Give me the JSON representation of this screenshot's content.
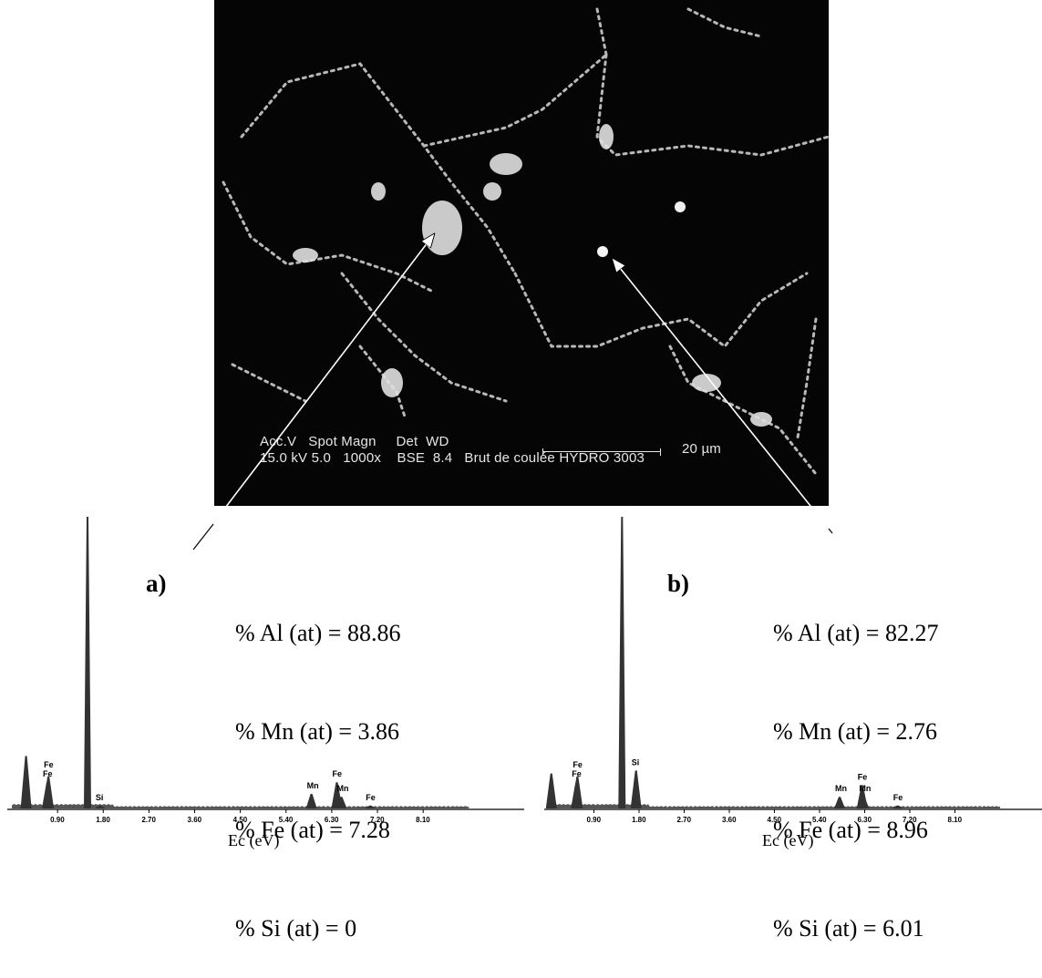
{
  "sem_image": {
    "info_line1": "Acc.V   Spot Magn     Det  WD",
    "info_line2": "15.0 kV 5.0   1000x    BSE  8.4   Brut de coulée HYDRO 3003",
    "scale_text": "20 µm"
  },
  "panels": [
    {
      "letter": "a)",
      "composition": [
        "% Al (at) = 88.86",
        "% Mn (at) = 3.86",
        "% Fe (at) = 7.28",
        "% Si (at) = 0"
      ]
    },
    {
      "letter": "b)",
      "composition": [
        "% Al (at) = 82.27",
        "% Mn (at) = 2.76",
        "% Fe (at) = 8.96",
        "% Si (at) = 6.01"
      ]
    }
  ],
  "chart_data": [
    {
      "type": "line",
      "xlabel": "Ec (eV)",
      "x_ticks": [
        "0.90",
        "1.80",
        "2.70",
        "3.60",
        "4.50",
        "5.40",
        "6.30",
        "7.20",
        "8.10"
      ],
      "x_tick_values": [
        0.9,
        1.8,
        2.7,
        3.6,
        4.5,
        5.4,
        6.3,
        7.2,
        8.1
      ],
      "xlim": [
        0,
        9.0
      ],
      "ylim": [
        0,
        100
      ],
      "peaks": [
        {
          "x": 0.28,
          "y": 18,
          "label": ""
        },
        {
          "x": 0.7,
          "y": 9,
          "label": "Fe"
        },
        {
          "x": 0.72,
          "y": 11,
          "label": "Fe"
        },
        {
          "x": 1.49,
          "y": 100,
          "label": ""
        },
        {
          "x": 1.74,
          "y": 1,
          "label": "Si"
        },
        {
          "x": 5.9,
          "y": 5,
          "label": "Mn"
        },
        {
          "x": 6.4,
          "y": 9,
          "label": "Fe"
        },
        {
          "x": 6.49,
          "y": 4,
          "label": "Mn"
        },
        {
          "x": 7.06,
          "y": 1,
          "label": "Fe"
        }
      ],
      "peak_labels": [
        "Fe",
        "Fe",
        "Si",
        "Mn",
        "Fe",
        "Mn",
        "Fe"
      ]
    },
    {
      "type": "line",
      "xlabel": "Ec (eV)",
      "x_ticks": [
        "0.90",
        "1.80",
        "2.70",
        "3.60",
        "4.50",
        "5.40",
        "6.30",
        "7.20",
        "8.10"
      ],
      "x_tick_values": [
        0.9,
        1.8,
        2.7,
        3.6,
        4.5,
        5.4,
        6.3,
        7.2,
        8.1
      ],
      "xlim": [
        0,
        9.0
      ],
      "ylim": [
        0,
        100
      ],
      "peaks": [
        {
          "x": 0.05,
          "y": 12,
          "label": ""
        },
        {
          "x": 0.55,
          "y": 9,
          "label": "Fe"
        },
        {
          "x": 0.57,
          "y": 11,
          "label": "Fe"
        },
        {
          "x": 1.46,
          "y": 100,
          "label": ""
        },
        {
          "x": 1.74,
          "y": 13,
          "label": "Si"
        },
        {
          "x": 5.8,
          "y": 4,
          "label": "Mn"
        },
        {
          "x": 6.25,
          "y": 8,
          "label": "Fe"
        },
        {
          "x": 6.28,
          "y": 4,
          "label": "Mn"
        },
        {
          "x": 6.96,
          "y": 1,
          "label": "Fe"
        }
      ],
      "peak_labels": [
        "Fe",
        "Fe",
        "Si",
        "Mn",
        "Fe",
        "Mn",
        "Fe"
      ]
    }
  ]
}
